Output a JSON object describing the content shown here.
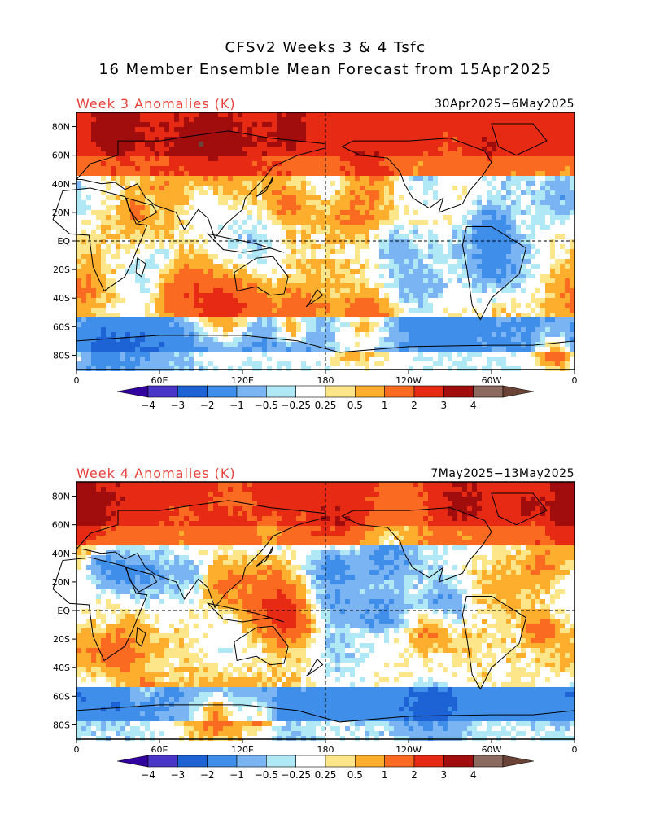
{
  "title": {
    "line1": "CFSv2 Weeks 3 & 4 Tsfc",
    "line2": "16 Member Ensemble Mean Forecast from 15Apr2025"
  },
  "colors": {
    "label_red": "#e8403a",
    "levels": [
      "#3300a0",
      "#4a36c9",
      "#1d63d6",
      "#3f8fea",
      "#7bb4f2",
      "#b0e8f6",
      "#ffffff",
      "#fde58a",
      "#fcae2c",
      "#fb6a21",
      "#e72a13",
      "#a10d0d",
      "#8c6a5f",
      "#6b4336"
    ],
    "land_outline": "#000000"
  },
  "panels": [
    {
      "label": "Week 3 Anomalies (K)",
      "date_range": "30Apr2025−6May2025",
      "seed": 7
    },
    {
      "label": "Week 4 Anomalies (K)",
      "date_range": "7May2025−13May2025",
      "seed": 23
    }
  ],
  "axes": {
    "lat_ticks": [
      "80N",
      "60N",
      "40N",
      "20N",
      "EQ",
      "20S",
      "40S",
      "60S",
      "80S"
    ],
    "lon_ticks": [
      "0",
      "60E",
      "120E",
      "180",
      "120W",
      "60W",
      "0"
    ]
  },
  "colorbar": {
    "tick_labels": [
      "−4",
      "−3",
      "−2",
      "−1",
      "−0.5",
      "−0.25",
      "0.25",
      "0.5",
      "1",
      "2",
      "3",
      "4"
    ]
  }
}
